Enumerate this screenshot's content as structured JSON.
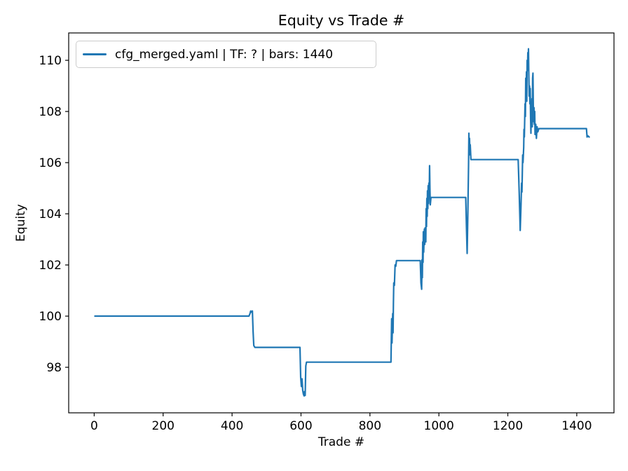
{
  "title": "Equity vs Trade #",
  "legend": {
    "label": "cfg_merged.yaml | TF: ? | bars: 1440"
  },
  "colors": {
    "line": "#1f77b4",
    "axis": "#000000",
    "legend_border": "#cccccc",
    "background": "#ffffff"
  },
  "chart_data": {
    "type": "line",
    "title": "Equity vs Trade #",
    "xlabel": "Trade #",
    "ylabel": "Equity",
    "xlim": [
      -74,
      1508
    ],
    "ylim": [
      96.22,
      111.07
    ],
    "x_ticks": [
      0,
      200,
      400,
      600,
      800,
      1000,
      1200,
      1400
    ],
    "y_ticks": [
      98,
      100,
      102,
      104,
      106,
      108,
      110
    ],
    "grid": false,
    "legend_position": "upper left",
    "line_color": "#1f77b4",
    "series": [
      {
        "name": "cfg_merged.yaml | TF: ? | bars: 1440",
        "points": [
          [
            2,
            100.0
          ],
          [
            449,
            100.0
          ],
          [
            452,
            100.1
          ],
          [
            454,
            100.2
          ],
          [
            457,
            100.15
          ],
          [
            459,
            100.2
          ],
          [
            461,
            99.4
          ],
          [
            463,
            98.85
          ],
          [
            466,
            98.78
          ],
          [
            597,
            98.78
          ],
          [
            599,
            97.6
          ],
          [
            601,
            97.25
          ],
          [
            603,
            97.55
          ],
          [
            605,
            97.1
          ],
          [
            607,
            96.95
          ],
          [
            609,
            96.88
          ],
          [
            610,
            97.05
          ],
          [
            612,
            96.9
          ],
          [
            614,
            98.05
          ],
          [
            616,
            98.2
          ],
          [
            861,
            98.2
          ],
          [
            863,
            99.9
          ],
          [
            864,
            98.95
          ],
          [
            866,
            100.1
          ],
          [
            867,
            99.35
          ],
          [
            868,
            100.5
          ],
          [
            869,
            101.3
          ],
          [
            871,
            101.2
          ],
          [
            873,
            102.0
          ],
          [
            875,
            101.95
          ],
          [
            877,
            102.17
          ],
          [
            946,
            102.17
          ],
          [
            948,
            101.3
          ],
          [
            950,
            101.05
          ],
          [
            951,
            102.2
          ],
          [
            952,
            101.5
          ],
          [
            953,
            102.9
          ],
          [
            954,
            102.1
          ],
          [
            955,
            103.3
          ],
          [
            956,
            102.5
          ],
          [
            958,
            103.4
          ],
          [
            959,
            102.8
          ],
          [
            960,
            103.45
          ],
          [
            962,
            102.9
          ],
          [
            963,
            104.2
          ],
          [
            964,
            103.5
          ],
          [
            965,
            104.6
          ],
          [
            966,
            103.9
          ],
          [
            967,
            104.9
          ],
          [
            968,
            104.2
          ],
          [
            969,
            105.1
          ],
          [
            970,
            104.4
          ],
          [
            971,
            105.2
          ],
          [
            972,
            104.7
          ],
          [
            973,
            105.88
          ],
          [
            974,
            105.0
          ],
          [
            975,
            104.35
          ],
          [
            977,
            104.64
          ],
          [
            1078,
            104.64
          ],
          [
            1080,
            103.5
          ],
          [
            1082,
            102.45
          ],
          [
            1084,
            104.0
          ],
          [
            1086,
            105.9
          ],
          [
            1087,
            107.15
          ],
          [
            1088,
            106.3
          ],
          [
            1089,
            106.95
          ],
          [
            1090,
            106.4
          ],
          [
            1091,
            106.7
          ],
          [
            1093,
            106.12
          ],
          [
            1230,
            106.12
          ],
          [
            1233,
            104.8
          ],
          [
            1236,
            103.35
          ],
          [
            1238,
            104.2
          ],
          [
            1240,
            105.2
          ],
          [
            1241,
            104.85
          ],
          [
            1243,
            106.3
          ],
          [
            1244,
            106.0
          ],
          [
            1246,
            106.6
          ],
          [
            1247,
            107.3
          ],
          [
            1248,
            107.0
          ],
          [
            1250,
            108.3
          ],
          [
            1251,
            107.8
          ],
          [
            1252,
            109.3
          ],
          [
            1253,
            108.5
          ],
          [
            1254,
            109.55
          ],
          [
            1255,
            108.4
          ],
          [
            1256,
            110.0
          ],
          [
            1257,
            109.6
          ],
          [
            1258,
            110.3
          ],
          [
            1259,
            109.9
          ],
          [
            1260,
            110.45
          ],
          [
            1261,
            109.4
          ],
          [
            1262,
            108.6
          ],
          [
            1263,
            109.0
          ],
          [
            1264,
            108.3
          ],
          [
            1265,
            108.9
          ],
          [
            1266,
            107.8
          ],
          [
            1267,
            107.15
          ],
          [
            1268,
            108.3
          ],
          [
            1269,
            107.6
          ],
          [
            1270,
            108.5
          ],
          [
            1271,
            107.4
          ],
          [
            1272,
            109.3
          ],
          [
            1273,
            109.5
          ],
          [
            1274,
            108.2
          ],
          [
            1275,
            107.6
          ],
          [
            1276,
            108.15
          ],
          [
            1277,
            107.5
          ],
          [
            1278,
            108.0
          ],
          [
            1279,
            107.1
          ],
          [
            1281,
            107.5
          ],
          [
            1283,
            106.95
          ],
          [
            1285,
            107.4
          ],
          [
            1287,
            107.2
          ],
          [
            1290,
            107.33
          ],
          [
            1428,
            107.33
          ],
          [
            1430,
            107.0
          ],
          [
            1432,
            107.05
          ],
          [
            1436,
            107.0
          ]
        ]
      }
    ]
  }
}
